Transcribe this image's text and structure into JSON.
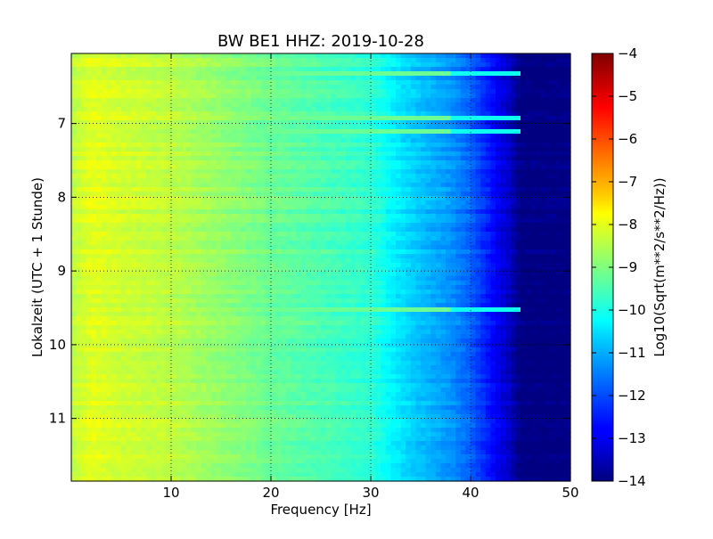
{
  "chart_data": {
    "type": "heatmap",
    "title": "BW BE1 HHZ: 2019-10-28",
    "xlabel": "Frequency [Hz]",
    "ylabel": "Lokalzeit (UTC + 1 Stunde)",
    "xlim": [
      0,
      50
    ],
    "ylim": [
      11.85,
      6.05
    ],
    "x_ticks": [
      10,
      20,
      30,
      40,
      50
    ],
    "x_tick_labels": [
      "10",
      "20",
      "30",
      "40",
      "50"
    ],
    "y_ticks": [
      7,
      8,
      9,
      10,
      11
    ],
    "y_tick_labels": [
      "7",
      "8",
      "9",
      "10",
      "11"
    ],
    "y_inverted": true,
    "grid": true,
    "colorbar": {
      "label": "Log10(Sqrt(m**2/s**2/Hz))",
      "range": [
        -14,
        -4
      ],
      "ticks": [
        -4,
        -5,
        -6,
        -7,
        -8,
        -9,
        -10,
        -11,
        -12,
        -13,
        -14
      ],
      "tick_labels": [
        "−4",
        "−5",
        "−6",
        "−7",
        "−8",
        "−9",
        "−10",
        "−11",
        "−12",
        "−13",
        "−14"
      ],
      "colormap": "jet"
    },
    "spectrum_profile": {
      "frequency_hz": [
        0,
        2,
        5,
        10,
        15,
        20,
        25,
        30,
        32,
        34,
        36,
        38,
        40,
        42,
        44,
        45,
        50
      ],
      "level": [
        -8.4,
        -8.0,
        -8.2,
        -8.4,
        -8.8,
        -9.2,
        -9.5,
        -9.8,
        -10.3,
        -10.7,
        -11.0,
        -11.3,
        -11.8,
        -12.6,
        -13.4,
        -14.0,
        -14.0
      ]
    },
    "bright_lines_hours": [
      6.3,
      6.93,
      7.13,
      9.5
    ],
    "bright_lines_level": -9.2
  }
}
